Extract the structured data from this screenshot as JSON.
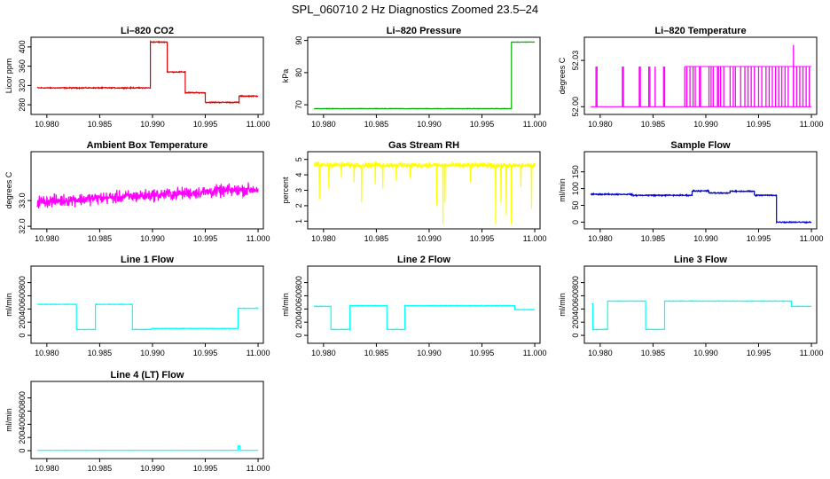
{
  "figure": {
    "title": "SPL_060710  2 Hz Diagnostics Zoomed 23.5–24"
  },
  "chart_data": [
    {
      "type": "line",
      "title": "Li–820 CO2",
      "ylabel": "Licor ppm",
      "color": "#e00000",
      "xlim": [
        10.9785,
        11.0005
      ],
      "xticks": [
        10.98,
        10.985,
        10.99,
        10.995,
        11.0
      ],
      "xtick_labels": [
        "10.980",
        "10.985",
        "10.990",
        "10.995",
        "11.000"
      ],
      "ylim": [
        260,
        420
      ],
      "yticks": [
        280,
        320,
        360,
        400
      ],
      "ytick_labels": [
        "280",
        "320",
        "360",
        "400"
      ],
      "noise": 1.5,
      "segments": [
        [
          10.9791,
          10.9898,
          315
        ],
        [
          10.9898,
          10.9914,
          410
        ],
        [
          10.9914,
          10.9931,
          348
        ],
        [
          10.9931,
          10.995,
          305
        ],
        [
          10.995,
          10.9982,
          285
        ],
        [
          10.9982,
          11.0,
          298
        ]
      ]
    },
    {
      "type": "line",
      "title": "Li–820 Pressure",
      "ylabel": "kPa",
      "color": "#00b000",
      "xlim": [
        10.9785,
        11.0005
      ],
      "xticks": [
        10.98,
        10.985,
        10.99,
        10.995,
        11.0
      ],
      "xtick_labels": [
        "10.980",
        "10.985",
        "10.990",
        "10.995",
        "11.000"
      ],
      "ylim": [
        67,
        91
      ],
      "yticks": [
        70,
        80,
        90
      ],
      "ytick_labels": [
        "70",
        "80",
        "90"
      ],
      "noise": 0.1,
      "segments": [
        [
          10.9791,
          10.9978,
          68.8
        ],
        [
          10.9978,
          10.9985,
          89.5
        ],
        [
          10.9985,
          11.0,
          89.5
        ]
      ]
    },
    {
      "type": "spikes",
      "title": "Li–820 Temperature",
      "ylabel": "degrees C",
      "color": "#ff00ff",
      "xlim": [
        10.9785,
        11.0005
      ],
      "xticks": [
        10.98,
        10.985,
        10.99,
        10.995,
        11.0
      ],
      "xtick_labels": [
        "10.980",
        "10.985",
        "10.990",
        "10.995",
        "11.000"
      ],
      "ylim": [
        51.995,
        52.045
      ],
      "yticks": [
        52.0,
        52.03
      ],
      "ytick_labels": [
        "52.00",
        "52.03"
      ],
      "baseline": 52.0,
      "spike_value": 52.026,
      "peak_value": 52.04,
      "spikes_x": [
        10.9796,
        10.9797,
        10.9821,
        10.9822,
        10.9837,
        10.9838,
        10.9846,
        10.9847,
        10.9852,
        10.986,
        10.9861,
        10.988,
        10.9882,
        10.9885,
        10.9888,
        10.989,
        10.9894,
        10.9895,
        10.9903,
        10.9905,
        10.9907,
        10.9911,
        10.9912,
        10.9914,
        10.9917,
        10.9923,
        10.9926,
        10.9928,
        10.9933,
        10.9937,
        10.994,
        10.9943,
        10.9946,
        10.995,
        10.9953,
        10.9957,
        10.996,
        10.9963,
        10.9966,
        10.9969,
        10.9972,
        10.9975,
        10.9978,
        10.9983,
        10.9986,
        10.9989,
        10.9992,
        10.9995,
        10.9998
      ],
      "peak_x": 10.9983
    },
    {
      "type": "line",
      "title": "Ambient Box Temperature",
      "ylabel": "degrees C",
      "color": "#ff00ff",
      "xlim": [
        10.9785,
        11.0005
      ],
      "xticks": [
        10.98,
        10.985,
        10.99,
        10.995,
        11.0
      ],
      "xtick_labels": [
        "10.980",
        "10.985",
        "10.990",
        "10.995",
        "11.000"
      ],
      "ylim": [
        31.9,
        34.9
      ],
      "yticks": [
        32.0,
        33.0
      ],
      "ytick_labels": [
        "32.0",
        "33.0"
      ],
      "noise": 0.35,
      "trend": [
        [
          10.9791,
          32.95
        ],
        [
          11.0,
          33.45
        ]
      ]
    },
    {
      "type": "line",
      "title": "Gas Stream RH",
      "ylabel": "percent",
      "color": "#ffff00",
      "xlim": [
        10.9785,
        11.0005
      ],
      "xticks": [
        10.98,
        10.985,
        10.99,
        10.995,
        11.0
      ],
      "xtick_labels": [
        "10.980",
        "10.985",
        "10.990",
        "10.995",
        "11.000"
      ],
      "ylim": [
        0.5,
        5.5
      ],
      "yticks": [
        1,
        2,
        3,
        4,
        5
      ],
      "ytick_labels": [
        "1",
        "2",
        "3",
        "4",
        "5"
      ],
      "noise": 0.25,
      "trend": [
        [
          10.9791,
          4.65
        ],
        [
          11.0,
          4.6
        ]
      ],
      "dips": [
        [
          10.9796,
          2.4
        ],
        [
          10.9805,
          3.1
        ],
        [
          10.9817,
          3.8
        ],
        [
          10.9829,
          3.5
        ],
        [
          10.9836,
          2.2
        ],
        [
          10.9849,
          3.4
        ],
        [
          10.9856,
          3.1
        ],
        [
          10.9869,
          3.6
        ],
        [
          10.9882,
          3.8
        ],
        [
          10.9907,
          2.0
        ],
        [
          10.9913,
          0.8
        ],
        [
          10.9915,
          2.2
        ],
        [
          10.9939,
          3.5
        ],
        [
          10.9963,
          0.8
        ],
        [
          10.9968,
          2.2
        ],
        [
          10.9973,
          1.4
        ],
        [
          10.9978,
          0.8
        ],
        [
          10.9987,
          3.2
        ],
        [
          10.9997,
          1.8
        ]
      ]
    },
    {
      "type": "line",
      "title": "Sample Flow",
      "ylabel": "ml/min",
      "color": "#0000cc",
      "xlim": [
        10.9785,
        11.0005
      ],
      "xticks": [
        10.98,
        10.985,
        10.99,
        10.995,
        11.0
      ],
      "xtick_labels": [
        "10.980",
        "10.985",
        "10.990",
        "10.995",
        "11.000"
      ],
      "ylim": [
        -20,
        210
      ],
      "yticks": [
        0,
        50,
        100,
        150
      ],
      "ytick_labels": [
        "0",
        "50",
        "100",
        "150"
      ],
      "noise": 2.5,
      "segments": [
        [
          10.9791,
          10.983,
          83
        ],
        [
          10.983,
          10.9887,
          80
        ],
        [
          10.9887,
          10.9903,
          93
        ],
        [
          10.9903,
          10.9923,
          87
        ],
        [
          10.9923,
          10.9946,
          92
        ],
        [
          10.9946,
          10.9967,
          80
        ],
        [
          10.9967,
          11.0,
          0
        ]
      ]
    },
    {
      "type": "line",
      "title": "Line 1 Flow",
      "ylabel": "ml/min",
      "color": "#00ffff",
      "xlim": [
        10.9785,
        11.0005
      ],
      "xticks": [
        10.98,
        10.985,
        10.99,
        10.995,
        11.0
      ],
      "xtick_labels": [
        "10.980",
        "10.985",
        "10.990",
        "10.995",
        "11.000"
      ],
      "ylim": [
        -120,
        1050
      ],
      "yticks": [
        0,
        200,
        400,
        600,
        800
      ],
      "ytick_labels": [
        "0",
        "200",
        "400",
        "600",
        "800"
      ],
      "noise": 6,
      "segments": [
        [
          10.9791,
          10.9828,
          470
        ],
        [
          10.9828,
          10.9846,
          90
        ],
        [
          10.9846,
          10.9881,
          470
        ],
        [
          10.9881,
          10.9899,
          90
        ],
        [
          10.9899,
          10.9981,
          105
        ],
        [
          10.9981,
          11.0,
          410
        ]
      ]
    },
    {
      "type": "line",
      "title": "Line 2 Flow",
      "ylabel": "ml/min",
      "color": "#00ffff",
      "xlim": [
        10.9785,
        11.0005
      ],
      "xticks": [
        10.98,
        10.985,
        10.99,
        10.995,
        11.0
      ],
      "xtick_labels": [
        "10.980",
        "10.985",
        "10.990",
        "10.995",
        "11.000"
      ],
      "ylim": [
        -120,
        1050
      ],
      "yticks": [
        0,
        200,
        400,
        600,
        800
      ],
      "ytick_labels": [
        "0",
        "200",
        "400",
        "600",
        "800"
      ],
      "noise": 6,
      "segments": [
        [
          10.9791,
          10.9807,
          440
        ],
        [
          10.9807,
          10.9825,
          90
        ],
        [
          10.9825,
          10.986,
          450
        ],
        [
          10.986,
          10.9877,
          90
        ],
        [
          10.9877,
          10.9981,
          450
        ],
        [
          10.9981,
          11.0,
          390
        ]
      ]
    },
    {
      "type": "line",
      "title": "Line 3 Flow",
      "ylabel": "ml/min",
      "color": "#00ffff",
      "xlim": [
        10.9785,
        11.0005
      ],
      "xticks": [
        10.98,
        10.985,
        10.99,
        10.995,
        11.0
      ],
      "xtick_labels": [
        "10.980",
        "10.985",
        "10.990",
        "10.995",
        "11.000"
      ],
      "ylim": [
        -120,
        1050
      ],
      "yticks": [
        0,
        200,
        400,
        600,
        800
      ],
      "ytick_labels": [
        "0",
        "200",
        "400",
        "600",
        "800"
      ],
      "noise": 6,
      "segments": [
        [
          10.9792,
          10.9793,
          480
        ],
        [
          10.9793,
          10.9807,
          90
        ],
        [
          10.9807,
          10.9843,
          520
        ],
        [
          10.9843,
          10.9861,
          90
        ],
        [
          10.9861,
          10.9981,
          520
        ],
        [
          10.9981,
          11.0,
          440
        ]
      ]
    },
    {
      "type": "line",
      "title": "Line 4 (LT) Flow",
      "ylabel": "ml/min",
      "color": "#00ffff",
      "xlim": [
        10.9785,
        11.0005
      ],
      "xticks": [
        10.98,
        10.985,
        10.99,
        10.995,
        11.0
      ],
      "xtick_labels": [
        "10.980",
        "10.985",
        "10.990",
        "10.995",
        "11.000"
      ],
      "ylim": [
        -120,
        1050
      ],
      "yticks": [
        0,
        200,
        400,
        600,
        800
      ],
      "ytick_labels": [
        "0",
        "200",
        "400",
        "600",
        "800"
      ],
      "noise": 2,
      "segments": [
        [
          10.9791,
          10.9981,
          5
        ],
        [
          10.9981,
          10.9983,
          70
        ],
        [
          10.9983,
          11.0,
          5
        ]
      ]
    }
  ]
}
